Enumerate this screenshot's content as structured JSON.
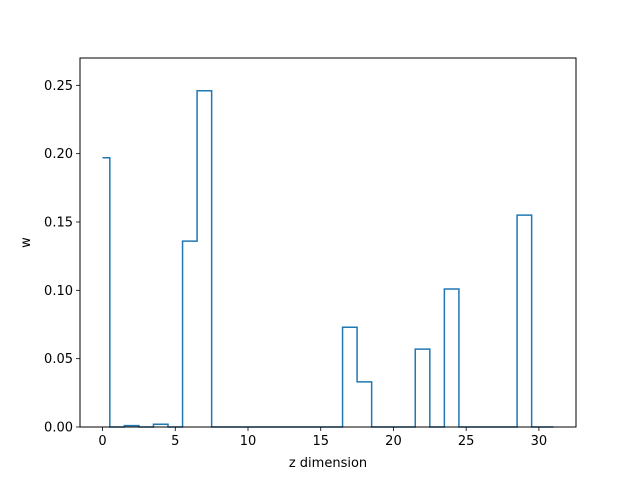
{
  "chart_data": {
    "type": "line",
    "drawstyle": "steps-mid",
    "title": "",
    "xlabel": "z dimension",
    "ylabel": "w",
    "xlim": [
      -1.55,
      32.55
    ],
    "ylim": [
      0,
      0.27
    ],
    "xticks": [
      0,
      5,
      10,
      15,
      20,
      25,
      30
    ],
    "yticks": [
      0.0,
      0.05,
      0.1,
      0.15,
      0.2,
      0.25
    ],
    "ytick_labels": [
      "0.00",
      "0.05",
      "0.10",
      "0.15",
      "0.20",
      "0.25"
    ],
    "grid": false,
    "legend": "none",
    "series": [
      {
        "color": "#1f77b4",
        "x": [
          0,
          1,
          2,
          3,
          4,
          5,
          6,
          7,
          8,
          9,
          10,
          11,
          12,
          13,
          14,
          15,
          16,
          17,
          18,
          19,
          20,
          21,
          22,
          23,
          24,
          25,
          26,
          27,
          28,
          29,
          30,
          31
        ],
        "y": [
          0.197,
          0.0,
          0.001,
          0.0,
          0.002,
          0.0,
          0.136,
          0.246,
          0.0,
          0.0,
          0.0,
          0.0,
          0.0,
          0.0,
          0.0,
          0.0,
          0.0,
          0.073,
          0.033,
          0.0,
          0.0,
          0.0,
          0.057,
          0.0,
          0.101,
          0.0,
          0.0,
          0.0,
          0.0,
          0.155,
          0.0,
          0.0
        ]
      }
    ]
  }
}
